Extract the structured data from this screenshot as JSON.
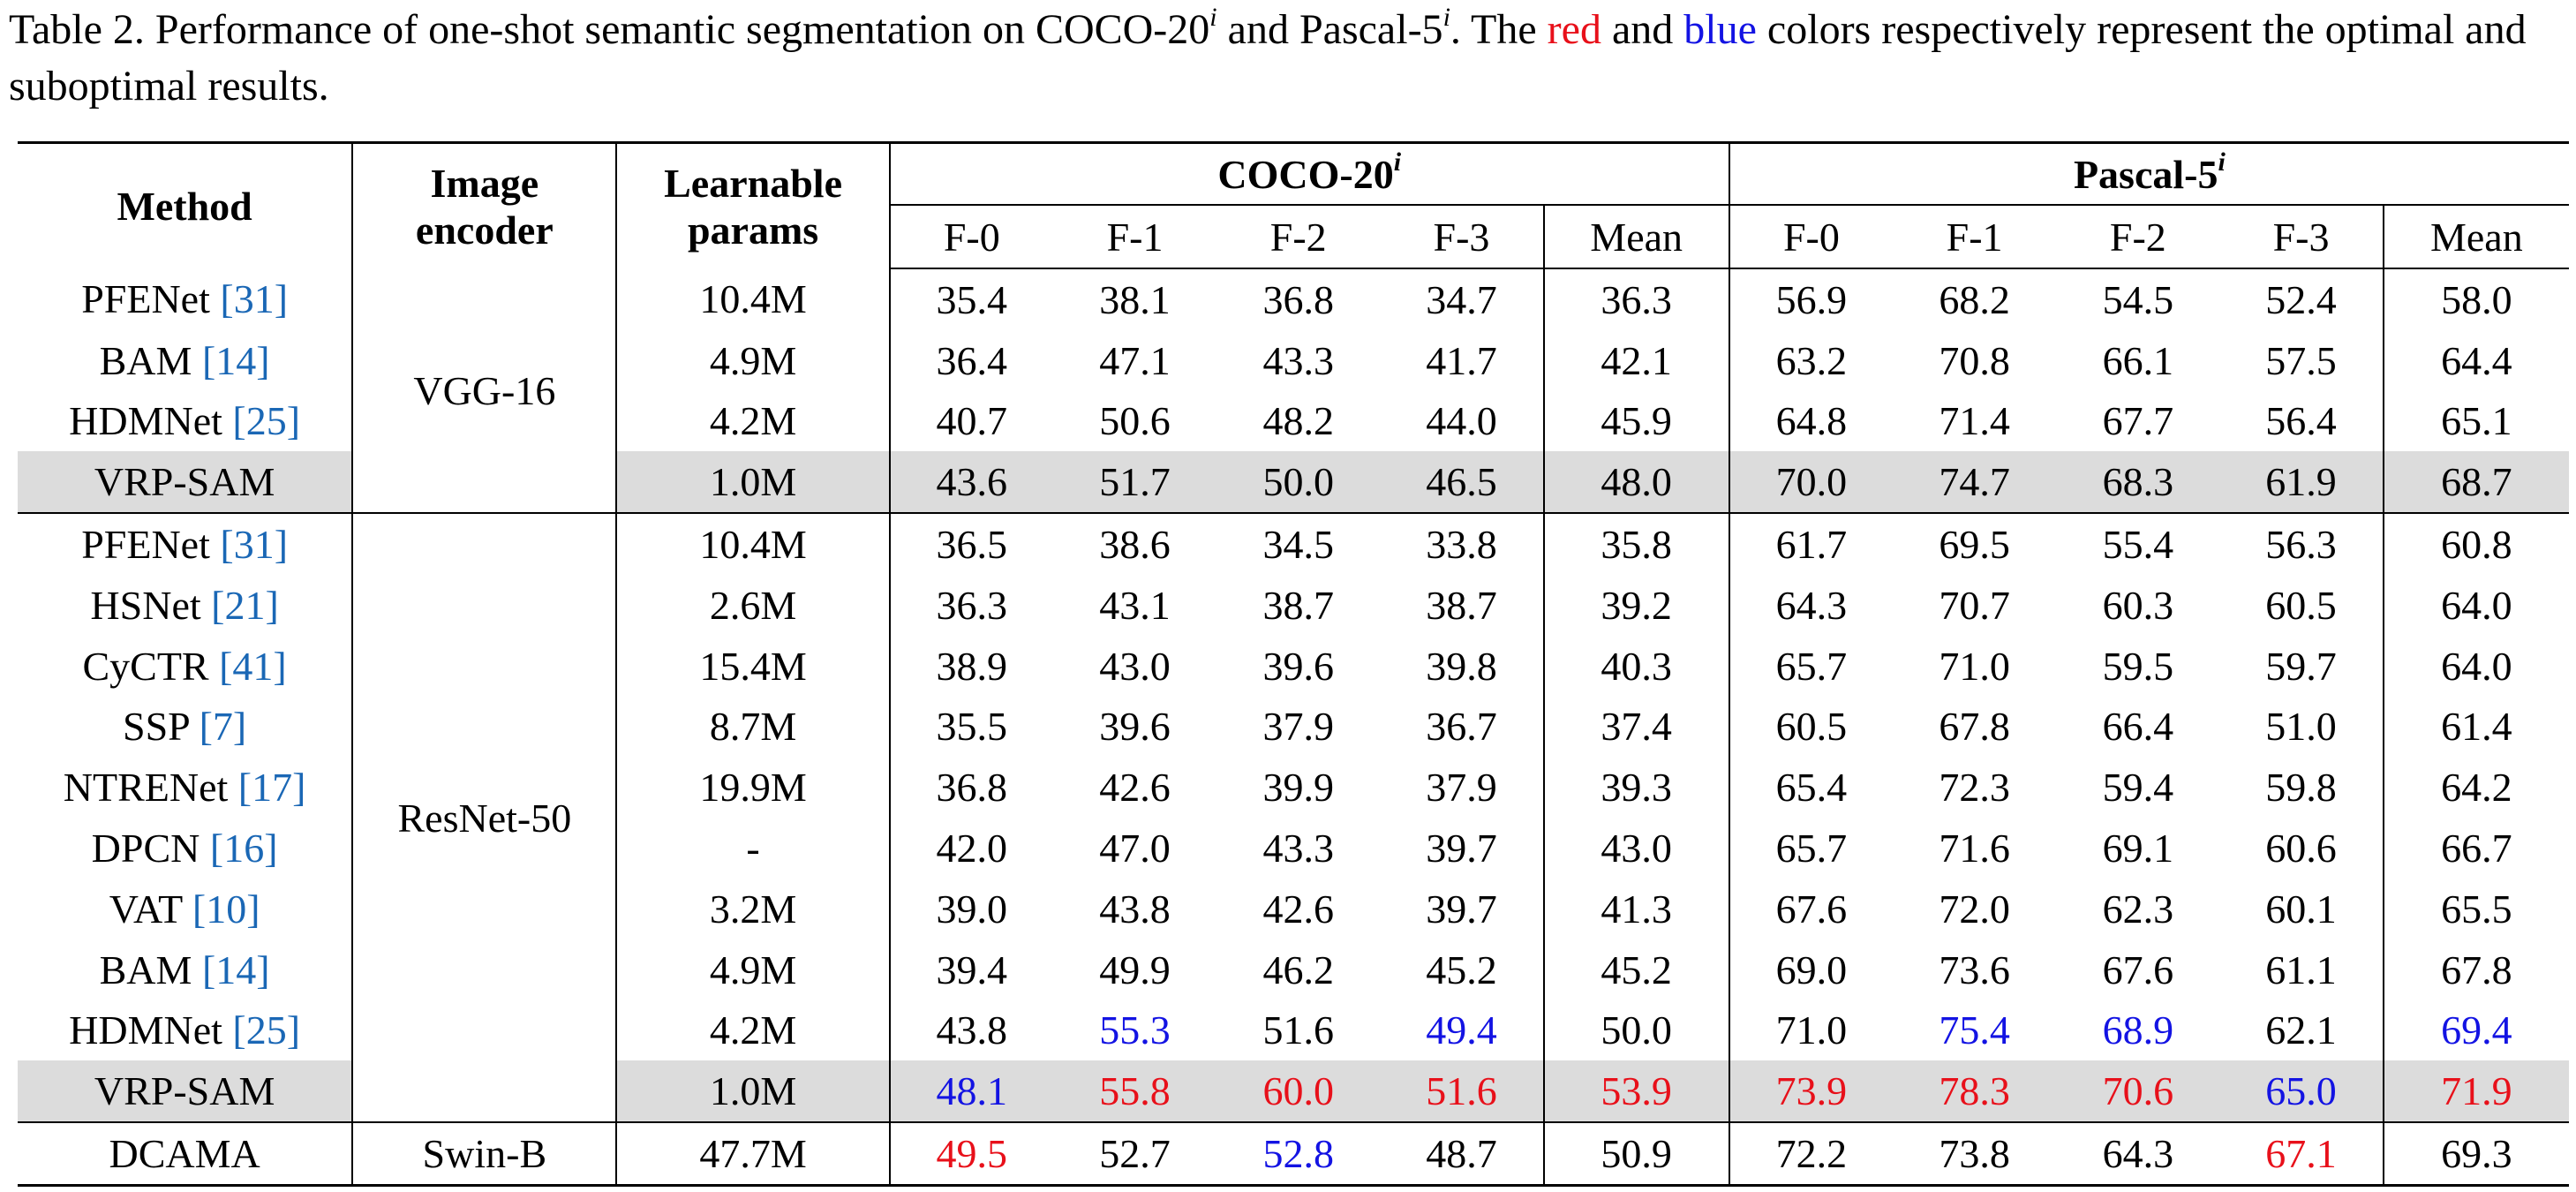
{
  "caption": {
    "prefix": "Table 2. Performance of one-shot semantic segmentation on COCO-20",
    "sup_i": "i",
    "and_pascal": " and Pascal-5",
    "after_pascal": ". The ",
    "red_word": "red",
    "and_word": " and ",
    "blue_word": "blue",
    "suffix": " colors respectively represent the optimal and suboptimal results."
  },
  "header": {
    "method": "Method",
    "encoder_line1": "Image",
    "encoder_line2": "encoder",
    "params_line1": "Learnable",
    "params_line2": "params",
    "coco_group": "COCO-20",
    "pascal_group": "Pascal-5",
    "group_sup": "i",
    "folds": [
      "F-0",
      "F-1",
      "F-2",
      "F-3",
      "Mean"
    ]
  },
  "colors": {
    "optimal": "#e8101a",
    "suboptimal": "#1313e3",
    "reference": "#1a67b5",
    "highlight_row": "#dcdcdc"
  },
  "encoders": {
    "vgg": "VGG-16",
    "resnet": "ResNet-50",
    "swin": "Swin-B"
  },
  "rows": [
    {
      "method": "PFENet ",
      "ref": "[31]",
      "params": "10.4M",
      "coco": [
        "35.4",
        "38.1",
        "36.8",
        "34.7",
        "36.3"
      ],
      "pascal": [
        "56.9",
        "68.2",
        "54.5",
        "52.4",
        "58.0"
      ]
    },
    {
      "method": "BAM ",
      "ref": "[14]",
      "params": "4.9M",
      "coco": [
        "36.4",
        "47.1",
        "43.3",
        "41.7",
        "42.1"
      ],
      "pascal": [
        "63.2",
        "70.8",
        "66.1",
        "57.5",
        "64.4"
      ]
    },
    {
      "method": "HDMNet ",
      "ref": "[25]",
      "params": "4.2M",
      "coco": [
        "40.7",
        "50.6",
        "48.2",
        "44.0",
        "45.9"
      ],
      "pascal": [
        "64.8",
        "71.4",
        "67.7",
        "56.4",
        "65.1"
      ]
    },
    {
      "method": "VRP-SAM",
      "ref": "",
      "params": "1.0M",
      "coco": [
        "43.6",
        "51.7",
        "50.0",
        "46.5",
        "48.0"
      ],
      "pascal": [
        "70.0",
        "74.7",
        "68.3",
        "61.9",
        "68.7"
      ]
    },
    {
      "method": "PFENet ",
      "ref": "[31]",
      "params": "10.4M",
      "coco": [
        "36.5",
        "38.6",
        "34.5",
        "33.8",
        "35.8"
      ],
      "pascal": [
        "61.7",
        "69.5",
        "55.4",
        "56.3",
        "60.8"
      ]
    },
    {
      "method": "HSNet ",
      "ref": "[21]",
      "params": "2.6M",
      "coco": [
        "36.3",
        "43.1",
        "38.7",
        "38.7",
        "39.2"
      ],
      "pascal": [
        "64.3",
        "70.7",
        "60.3",
        "60.5",
        "64.0"
      ]
    },
    {
      "method": "CyCTR ",
      "ref": "[41]",
      "params": "15.4M",
      "coco": [
        "38.9",
        "43.0",
        "39.6",
        "39.8",
        "40.3"
      ],
      "pascal": [
        "65.7",
        "71.0",
        "59.5",
        "59.7",
        "64.0"
      ]
    },
    {
      "method": "SSP ",
      "ref": "[7]",
      "params": "8.7M",
      "coco": [
        "35.5",
        "39.6",
        "37.9",
        "36.7",
        "37.4"
      ],
      "pascal": [
        "60.5",
        "67.8",
        "66.4",
        "51.0",
        "61.4"
      ]
    },
    {
      "method": "NTRENet ",
      "ref": "[17]",
      "params": "19.9M",
      "coco": [
        "36.8",
        "42.6",
        "39.9",
        "37.9",
        "39.3"
      ],
      "pascal": [
        "65.4",
        "72.3",
        "59.4",
        "59.8",
        "64.2"
      ]
    },
    {
      "method": "DPCN ",
      "ref": "[16]",
      "params": "-",
      "coco": [
        "42.0",
        "47.0",
        "43.3",
        "39.7",
        "43.0"
      ],
      "pascal": [
        "65.7",
        "71.6",
        "69.1",
        "60.6",
        "66.7"
      ]
    },
    {
      "method": "VAT ",
      "ref": "[10]",
      "params": "3.2M",
      "coco": [
        "39.0",
        "43.8",
        "42.6",
        "39.7",
        "41.3"
      ],
      "pascal": [
        "67.6",
        "72.0",
        "62.3",
        "60.1",
        "65.5"
      ]
    },
    {
      "method": "BAM ",
      "ref": "[14]",
      "params": "4.9M",
      "coco": [
        "39.4",
        "49.9",
        "46.2",
        "45.2",
        "45.2"
      ],
      "pascal": [
        "69.0",
        "73.6",
        "67.6",
        "61.1",
        "67.8"
      ]
    },
    {
      "method": "HDMNet ",
      "ref": "[25]",
      "params": "4.2M",
      "coco": [
        "43.8",
        "55.3",
        "51.6",
        "49.4",
        "50.0"
      ],
      "pascal": [
        "71.0",
        "75.4",
        "68.9",
        "62.1",
        "69.4"
      ]
    },
    {
      "method": "VRP-SAM",
      "ref": "",
      "params": "1.0M",
      "coco": [
        "48.1",
        "55.8",
        "60.0",
        "51.6",
        "53.9"
      ],
      "pascal": [
        "73.9",
        "78.3",
        "70.6",
        "65.0",
        "71.9"
      ]
    },
    {
      "method": "DCAMA",
      "ref": "",
      "params": "47.7M",
      "coco": [
        "49.5",
        "52.7",
        "52.8",
        "48.7",
        "50.9"
      ],
      "pascal": [
        "72.2",
        "73.8",
        "64.3",
        "67.1",
        "69.3"
      ]
    }
  ]
}
